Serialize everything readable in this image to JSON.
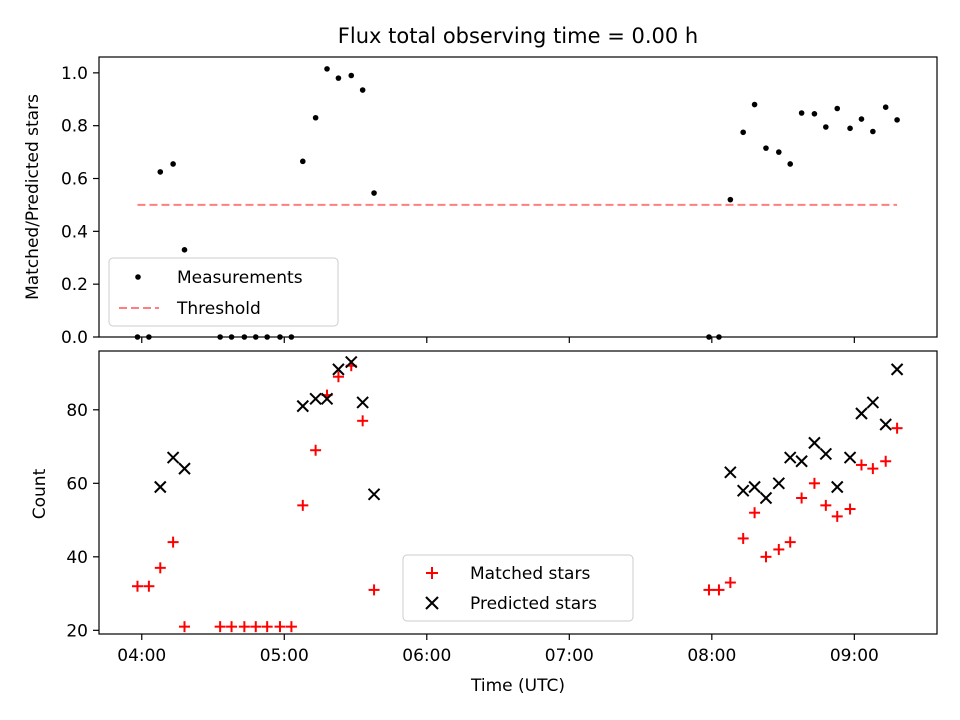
{
  "chart_data": [
    {
      "type": "scatter",
      "title": "Flux total observing time = 0.00 h",
      "xlabel": "",
      "ylabel": "Matched/Predicted stars",
      "xlim": [
        3.7,
        9.58
      ],
      "ylim": [
        0.0,
        1.06
      ],
      "x_ticks": [
        4,
        5,
        6,
        7,
        8,
        9
      ],
      "y_ticks": [
        0.0,
        0.2,
        0.4,
        0.6,
        0.8,
        1.0
      ],
      "y_tick_labels": [
        "0.0",
        "0.2",
        "0.4",
        "0.6",
        "0.8",
        "1.0"
      ],
      "legend_position": "lower-left",
      "series": [
        {
          "name": "Measurements",
          "marker": "dot",
          "color": "#000000",
          "points": [
            [
              3.97,
              0.0
            ],
            [
              4.05,
              0.0
            ],
            [
              4.13,
              0.625
            ],
            [
              4.22,
              0.655
            ],
            [
              4.3,
              0.33
            ],
            [
              4.55,
              0.0
            ],
            [
              4.63,
              0.0
            ],
            [
              4.72,
              0.0
            ],
            [
              4.8,
              0.0
            ],
            [
              4.88,
              0.0
            ],
            [
              4.97,
              0.0
            ],
            [
              5.05,
              0.0
            ],
            [
              5.13,
              0.665
            ],
            [
              5.22,
              0.83
            ],
            [
              5.3,
              1.015
            ],
            [
              5.38,
              0.98
            ],
            [
              5.47,
              0.99
            ],
            [
              5.55,
              0.935
            ],
            [
              5.63,
              0.545
            ],
            [
              7.98,
              0.0
            ],
            [
              8.05,
              0.0
            ],
            [
              8.13,
              0.52
            ],
            [
              8.22,
              0.775
            ],
            [
              8.3,
              0.88
            ],
            [
              8.38,
              0.715
            ],
            [
              8.47,
              0.7
            ],
            [
              8.55,
              0.655
            ],
            [
              8.63,
              0.848
            ],
            [
              8.72,
              0.845
            ],
            [
              8.8,
              0.795
            ],
            [
              8.88,
              0.865
            ],
            [
              8.97,
              0.79
            ],
            [
              9.05,
              0.825
            ],
            [
              9.13,
              0.778
            ],
            [
              9.22,
              0.87
            ],
            [
              9.3,
              0.822
            ]
          ]
        },
        {
          "name": "Threshold",
          "marker": "dashed-line",
          "color": "#ff7f7f",
          "points": [
            [
              3.97,
              0.5
            ],
            [
              9.3,
              0.5
            ]
          ]
        }
      ]
    },
    {
      "type": "scatter",
      "title": "",
      "xlabel": "Time (UTC)",
      "ylabel": "Count",
      "xlim": [
        3.7,
        9.58
      ],
      "ylim": [
        19.0,
        96.0
      ],
      "x_ticks": [
        4,
        5,
        6,
        7,
        8,
        9
      ],
      "x_tick_labels": [
        "04:00",
        "05:00",
        "06:00",
        "07:00",
        "08:00",
        "09:00"
      ],
      "y_ticks": [
        20,
        40,
        60,
        80
      ],
      "y_tick_labels": [
        "20",
        "40",
        "60",
        "80"
      ],
      "legend_position": "lower-center",
      "series": [
        {
          "name": "Matched stars",
          "marker": "plus",
          "color": "#ff0000",
          "points": [
            [
              3.97,
              32
            ],
            [
              4.05,
              32
            ],
            [
              4.13,
              37
            ],
            [
              4.22,
              44
            ],
            [
              4.3,
              21
            ],
            [
              4.55,
              21
            ],
            [
              4.63,
              21
            ],
            [
              4.72,
              21
            ],
            [
              4.8,
              21
            ],
            [
              4.88,
              21
            ],
            [
              4.97,
              21
            ],
            [
              5.05,
              21
            ],
            [
              5.13,
              54
            ],
            [
              5.22,
              69
            ],
            [
              5.3,
              84
            ],
            [
              5.38,
              89
            ],
            [
              5.47,
              92
            ],
            [
              5.55,
              77
            ],
            [
              5.63,
              31
            ],
            [
              7.98,
              31
            ],
            [
              8.05,
              31
            ],
            [
              8.13,
              33
            ],
            [
              8.22,
              45
            ],
            [
              8.3,
              52
            ],
            [
              8.38,
              40
            ],
            [
              8.47,
              42
            ],
            [
              8.55,
              44
            ],
            [
              8.63,
              56
            ],
            [
              8.72,
              60
            ],
            [
              8.8,
              54
            ],
            [
              8.88,
              51
            ],
            [
              8.97,
              53
            ],
            [
              9.05,
              65
            ],
            [
              9.13,
              64
            ],
            [
              9.22,
              66
            ],
            [
              9.3,
              75
            ]
          ]
        },
        {
          "name": "Predicted stars",
          "marker": "x",
          "color": "#000000",
          "points": [
            [
              4.13,
              59
            ],
            [
              4.22,
              67
            ],
            [
              4.3,
              64
            ],
            [
              5.13,
              81
            ],
            [
              5.22,
              83
            ],
            [
              5.3,
              83
            ],
            [
              5.38,
              91
            ],
            [
              5.47,
              93
            ],
            [
              5.55,
              82
            ],
            [
              5.63,
              57
            ],
            [
              8.13,
              63
            ],
            [
              8.22,
              58
            ],
            [
              8.3,
              59
            ],
            [
              8.38,
              56
            ],
            [
              8.47,
              60
            ],
            [
              8.55,
              67
            ],
            [
              8.63,
              66
            ],
            [
              8.72,
              71
            ],
            [
              8.8,
              68
            ],
            [
              8.88,
              59
            ],
            [
              8.97,
              67
            ],
            [
              9.05,
              79
            ],
            [
              9.13,
              82
            ],
            [
              9.22,
              76
            ],
            [
              9.3,
              91
            ]
          ]
        }
      ]
    }
  ]
}
